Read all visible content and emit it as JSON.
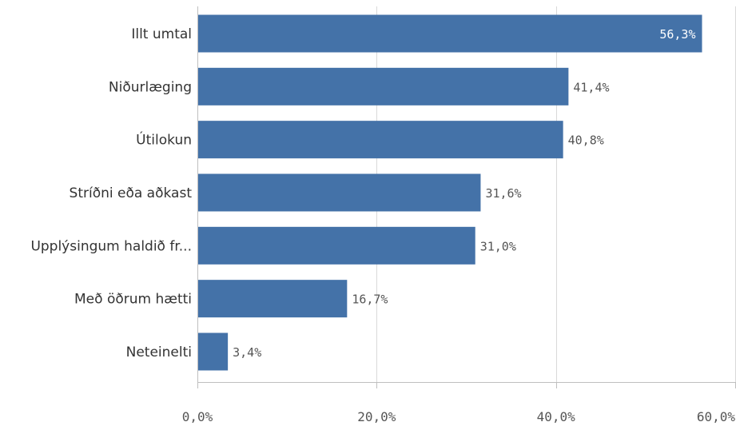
{
  "chart_data": {
    "type": "bar",
    "orientation": "horizontal",
    "categories": [
      "Illt umtal",
      "Niðurlæging",
      "Útilokun",
      "Stríðni eða aðkast",
      "Upplýsingum haldið fr...",
      "Með öðrum hætti",
      "Neteinelti"
    ],
    "values": [
      56.3,
      41.4,
      40.8,
      31.6,
      31.0,
      16.7,
      3.4
    ],
    "value_labels": [
      "56,3%",
      "41,4%",
      "40,8%",
      "31,6%",
      "31,0%",
      "16,7%",
      "3,4%"
    ],
    "xlim": [
      0,
      60
    ],
    "xticks": [
      0,
      20,
      40,
      60
    ],
    "xtick_labels": [
      "0,0%",
      "20,0%",
      "40,0%",
      "60,0%"
    ],
    "title": "",
    "xlabel": "",
    "ylabel": "",
    "grid": "vertical",
    "legend": "none",
    "colors": {
      "bar": "#4472a8",
      "grid": "#d9d9d9",
      "axis": "#bfbfbf",
      "label_outside": "#555555",
      "label_inside": "#ffffff",
      "category_text": "#333333"
    }
  }
}
